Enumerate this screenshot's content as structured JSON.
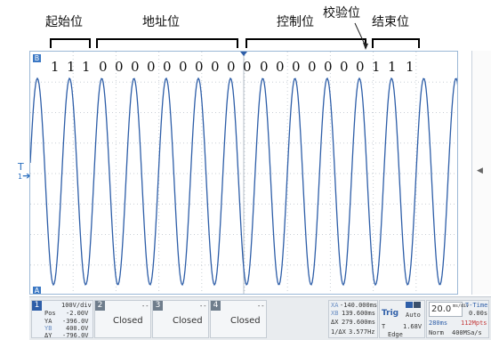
{
  "annotations": {
    "start": "起始位",
    "address": "地址位",
    "control": "控制位",
    "check": "校验位",
    "end": "结束位"
  },
  "bits": [
    "1",
    "1",
    "1",
    "0",
    "0",
    "0",
    "0",
    "0",
    "0",
    "0",
    "0",
    "0",
    "0",
    "0",
    "0",
    "0",
    "0",
    "0",
    "0",
    "0",
    "1",
    "1",
    "1"
  ],
  "screen": {
    "trace_color": "#2e5ea8",
    "grid_color": "#c9cfd6",
    "channel_marker": "1",
    "top_marker": "B",
    "bottom_marker": "A",
    "trigger_marker": "T"
  },
  "status": {
    "ch1": {
      "num": "1",
      "scale": "100V/div",
      "pos_label": "Pos",
      "pos": "-2.00V",
      "ya_label": "YA",
      "ya": "-396.0V",
      "yb_label": "YB",
      "yb": "400.0V",
      "dy_label": "ΔY",
      "dy": "-796.0V"
    },
    "ch2": {
      "num": "2",
      "state": "Closed",
      "dashes": "--"
    },
    "ch3": {
      "num": "3",
      "state": "Closed",
      "dashes": "--"
    },
    "ch4": {
      "num": "4",
      "state": "Closed",
      "dashes": "--"
    },
    "cursor": {
      "xa_label": "XA",
      "xa": "-140.000ms",
      "xb_label": "XB",
      "xb": "139.600ms",
      "dx_label": "ΔX",
      "dx": "279.600ms",
      "inv_label": "1/ΔX",
      "inv": "3.577Hz"
    },
    "trig": {
      "label": "Trig",
      "mode": "Auto",
      "level_label": "T",
      "level": "1.68V",
      "edge": "Edge"
    },
    "time": {
      "scale": "20.0",
      "unit": "ms/div",
      "record": "280ms",
      "rate": "112Mpts",
      "trigger_mode": "Norm",
      "sample": "400MSa/s",
      "ttime_label": "T-Time",
      "ttime": "0.00s"
    }
  }
}
